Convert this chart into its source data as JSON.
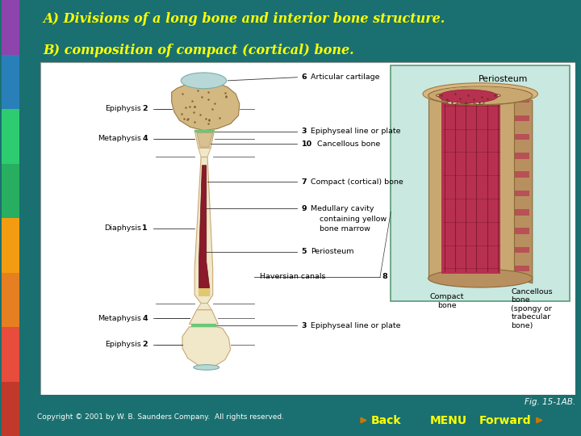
{
  "bg_color": "#1a7070",
  "title_text_line1": "A) Divisions of a long bone and interior bone structure.",
  "title_text_line2": "B) composition of compact (cortical) bone.",
  "title_color": "#ffff00",
  "title_fontsize": 11.5,
  "fig_caption": "Fig. 15-1AB.",
  "copyright": "Copyright © 2001 by W. B. Saunders Company.  All rights reserved.",
  "nav_back": "Back",
  "nav_menu": "MENU",
  "nav_forward": "Forward",
  "nav_color": "#ffff00",
  "strip_colors": [
    "#c0392b",
    "#e74c3c",
    "#e67e22",
    "#f39c12",
    "#27ae60",
    "#2ecc71",
    "#2980b9",
    "#8e44ad"
  ],
  "bone_color": "#f0e8c8",
  "bone_dark": "#c8a878",
  "marrow_color": "#8b1a2a",
  "cartilage_color": "#b8d8d8",
  "label_fontsize": 6.8,
  "panel_bg": "#ffffff"
}
